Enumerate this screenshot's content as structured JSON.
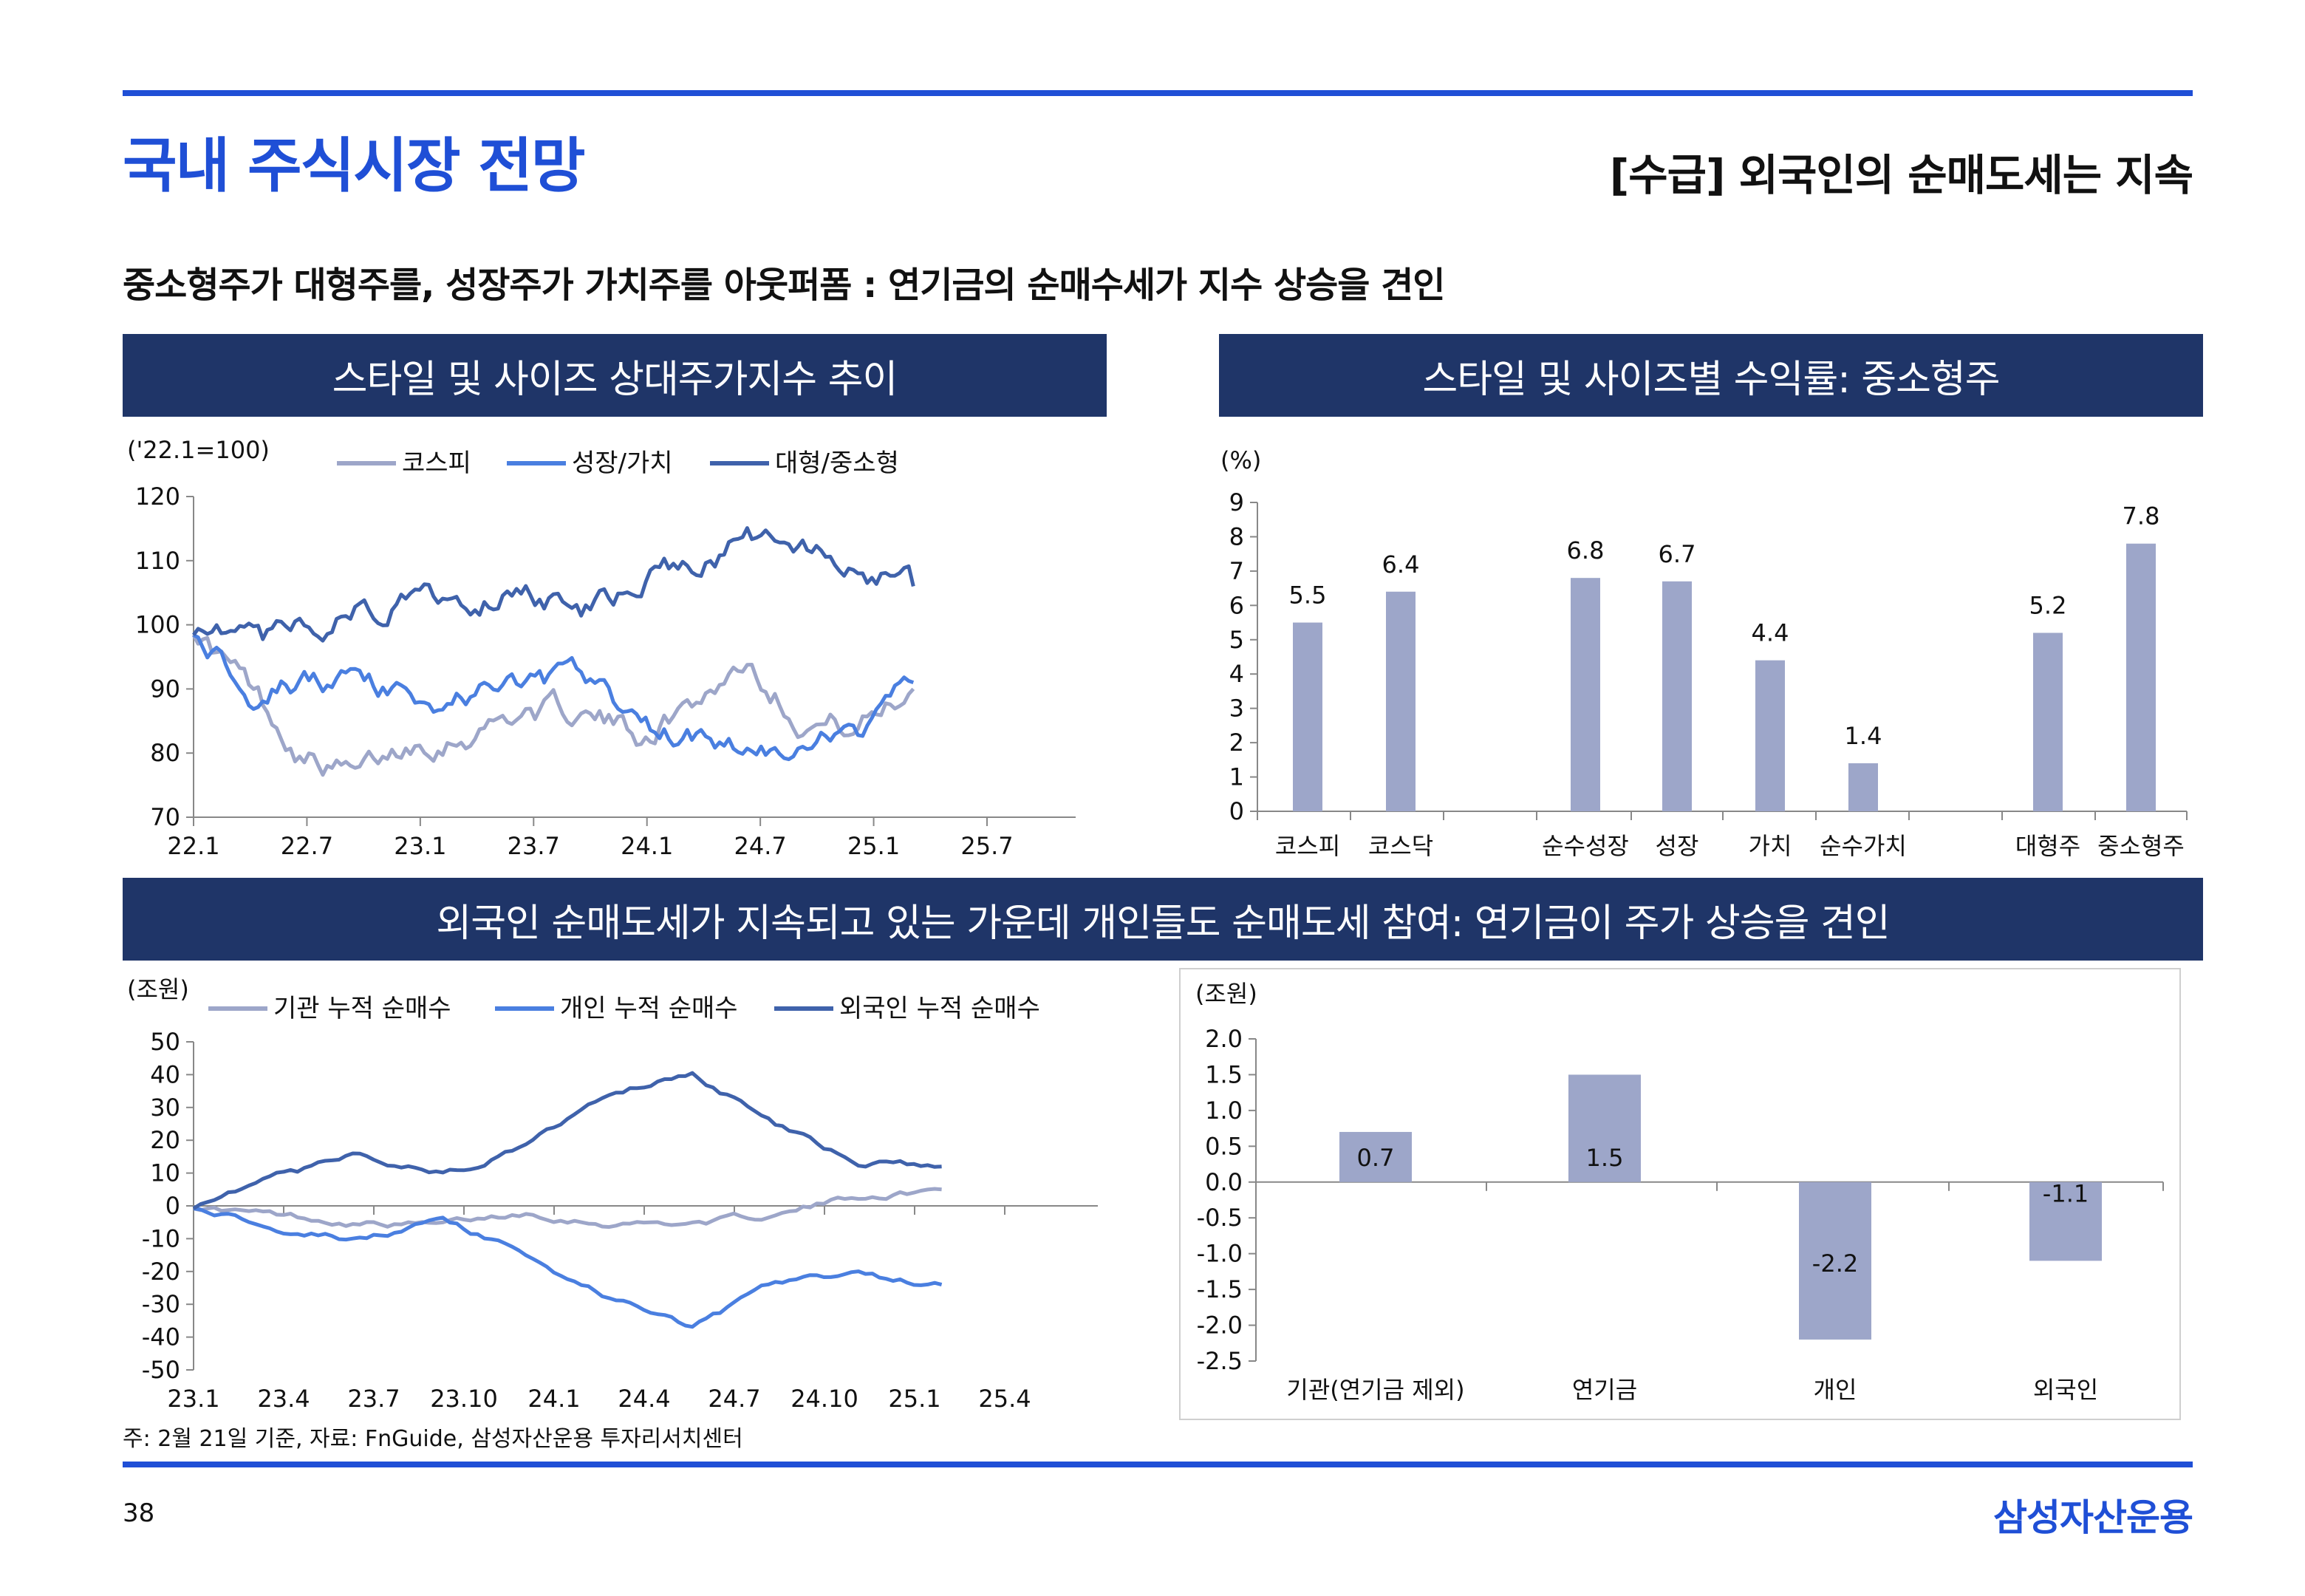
{
  "header": {
    "title": "국내 주식시장 전망",
    "right_title": "[수급] 외국인의 순매도세는 지속",
    "subtitle": "중소형주가 대형주를, 성장주가 가치주를 아웃퍼폼 : 연기금의 순매수세가 지수 상승을 견인"
  },
  "panels": {
    "p1": "스타일 및 사이즈 상대주가지수 추이",
    "p2": "스타일 및 사이즈별 수익률: 중소형주",
    "p3": "외국인 순매도세가 지속되고 있는 가운데 개인들도 순매도세 참여: 연기금이 주가 상승을 견인"
  },
  "colors": {
    "blue": "#1f4fd6",
    "navy": "#1f3568",
    "s1": "#9da6c9",
    "s2": "#4a7fe0",
    "s3": "#3f62ab",
    "bar": "#9da6c9"
  },
  "chart_data": [
    {
      "id": "relative_index",
      "type": "line",
      "unit": "('22.1=100)",
      "ylim": [
        70,
        120
      ],
      "yticks": [
        "70",
        "80",
        "90",
        "100",
        "110",
        "120"
      ],
      "xticks": [
        "22.1",
        "22.7",
        "23.1",
        "23.7",
        "24.1",
        "24.7",
        "25.1",
        "25.7"
      ],
      "x": [
        "22.1",
        "22.4",
        "22.7",
        "22.10",
        "23.1",
        "23.4",
        "23.7",
        "23.10",
        "24.1",
        "24.4",
        "24.7",
        "24.10",
        "25.1",
        "25.2"
      ],
      "series": [
        {
          "name": "코스피",
          "values": [
            100,
            90,
            80,
            76,
            82,
            84,
            87,
            86,
            83,
            88,
            95,
            86,
            84,
            90
          ]
        },
        {
          "name": "성장/가치",
          "values": [
            100,
            91,
            92,
            90,
            88,
            89,
            91,
            91,
            84,
            83,
            81,
            79,
            83,
            91
          ]
        },
        {
          "name": "대형/중소형",
          "values": [
            100,
            96,
            98,
            103,
            104,
            104,
            107,
            102,
            106,
            110,
            113,
            111,
            109,
            106
          ]
        }
      ]
    },
    {
      "id": "style_size_returns",
      "type": "bar",
      "unit": "(%)",
      "ylim": [
        0,
        9
      ],
      "yticks": [
        "0",
        "1",
        "2",
        "3",
        "4",
        "5",
        "6",
        "7",
        "8",
        "9"
      ],
      "categories": [
        "코스피",
        "코스닥",
        "순수성장",
        "성장",
        "가치",
        "순수가치",
        "대형주",
        "중소형주"
      ],
      "values": [
        5.5,
        6.4,
        6.8,
        6.7,
        4.4,
        1.4,
        5.2,
        7.8
      ],
      "labels": [
        "5.5",
        "6.4",
        "6.8",
        "6.7",
        "4.4",
        "1.4",
        "5.2",
        "7.8"
      ]
    },
    {
      "id": "cumulative_net_buying",
      "type": "line",
      "unit": "(조원)",
      "ylim": [
        -50,
        50
      ],
      "yticks": [
        "-50",
        "-40",
        "-30",
        "-20",
        "-10",
        "0",
        "10",
        "20",
        "30",
        "40",
        "50"
      ],
      "xticks": [
        "23.1",
        "23.4",
        "23.7",
        "23.10",
        "24.1",
        "24.4",
        "24.7",
        "24.10",
        "25.1",
        "25.4"
      ],
      "x": [
        "23.1",
        "23.4",
        "23.7",
        "23.10",
        "24.1",
        "24.4",
        "24.7",
        "24.10",
        "25.1",
        "25.2"
      ],
      "series": [
        {
          "name": "기관 누적 순매수",
          "values": [
            0,
            -3,
            -5,
            -6,
            -2,
            -5,
            -5,
            -3,
            3,
            5
          ]
        },
        {
          "name": "개인 누적 순매수",
          "values": [
            0,
            -6,
            -10,
            -5,
            -15,
            -28,
            -37,
            -24,
            -21,
            -24
          ]
        },
        {
          "name": "외국인 누적 순매수",
          "values": [
            0,
            8,
            15,
            10,
            18,
            35,
            41,
            25,
            13,
            12
          ]
        }
      ]
    },
    {
      "id": "net_buying_by_investor",
      "type": "bar",
      "unit": "(조원)",
      "ylim": [
        -2.5,
        2.0
      ],
      "yticks": [
        "-2.5",
        "-2.0",
        "-1.5",
        "-1.0",
        "-0.5",
        "0.0",
        "0.5",
        "1.0",
        "1.5",
        "2.0"
      ],
      "categories": [
        "기관(연기금 제외)",
        "연기금",
        "개인",
        "외국인"
      ],
      "values": [
        0.7,
        1.5,
        -2.2,
        -1.1
      ],
      "labels": [
        "0.7",
        "1.5",
        "-2.2",
        "-1.1"
      ]
    }
  ],
  "footer": {
    "note": "주: 2월 21일 기준, 자료: FnGuide, 삼성자산운용 투자리서치센터",
    "page": "38",
    "brand": "삼성자산운용"
  }
}
